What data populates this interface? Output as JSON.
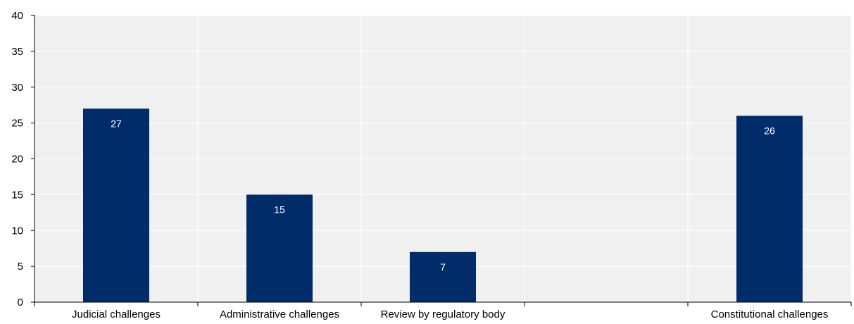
{
  "chart_data": {
    "type": "bar",
    "title": "",
    "xlabel": "",
    "ylabel": "",
    "ylim": [
      0,
      40
    ],
    "yticks": [
      0,
      5,
      10,
      15,
      20,
      25,
      30,
      35,
      40
    ],
    "categories": [
      "Judicial challenges",
      "Administrative challenges",
      "Review by regulatory body",
      "",
      "Constitutional challenges"
    ],
    "values": [
      27,
      15,
      7,
      null,
      26
    ],
    "data_labels": [
      "27",
      "15",
      "7",
      "",
      "26"
    ],
    "grid": true,
    "legend": "none"
  },
  "colors": {
    "bar": "#002d6a",
    "plot_background": "#f0f0f0",
    "gridline": "#ffffff",
    "axis": "#000000",
    "label_text": "#ffffff",
    "tick_text": "#000000"
  }
}
